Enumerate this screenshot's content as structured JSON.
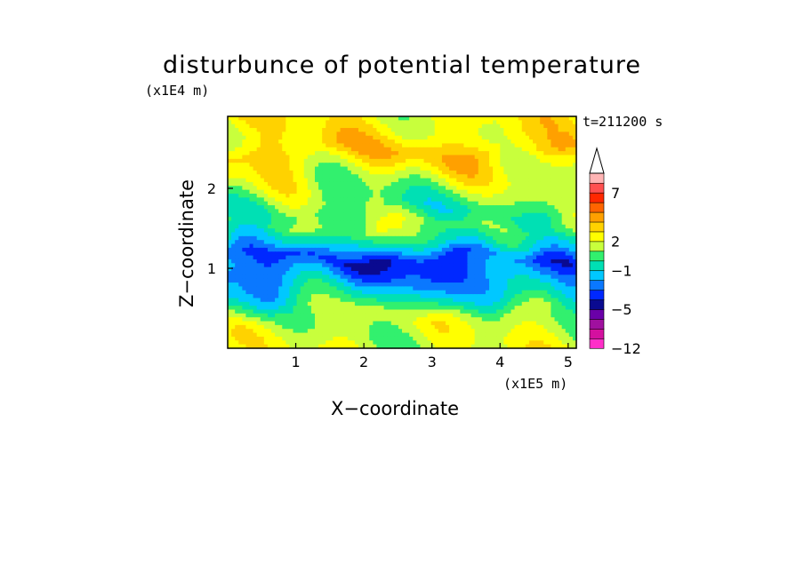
{
  "chart_data": {
    "type": "heatmap",
    "title": "disturbunce of potential temperature",
    "xlabel": "X−coordinate",
    "ylabel": "Z−coordinate",
    "x_scale_label": "(x1E5 m)",
    "y_scale_label": "(x1E4 m)",
    "time_label": "t=211200 s",
    "xlim": [
      0,
      5.12
    ],
    "ylim": [
      0,
      2.9
    ],
    "x_ticks": [
      "1",
      "2",
      "3",
      "4",
      "5"
    ],
    "y_ticks": [
      "1",
      "2"
    ],
    "colorbar": {
      "levels": [
        -12,
        -10,
        -8,
        -6,
        -5,
        -4,
        -3,
        -2,
        -1,
        0,
        1,
        2,
        3,
        4,
        5,
        6,
        7,
        8,
        9
      ],
      "tick_labels": [
        "−12",
        "−5",
        "−1",
        "2",
        "7"
      ],
      "colors": [
        "#ff2ec8",
        "#d4109f",
        "#a0109f",
        "#6a00a8",
        "#0a0a90",
        "#0028ff",
        "#0a78ff",
        "#00c8ff",
        "#00e0b4",
        "#32f06e",
        "#c8ff3c",
        "#ffff00",
        "#ffd200",
        "#ffa000",
        "#ff6400",
        "#ff2800",
        "#ff5050",
        "#ffb4b4"
      ],
      "extend": "max"
    },
    "bands": [
      {
        "z": 2.72,
        "value": 2.5
      },
      {
        "z": 2.45,
        "value": 3.5
      },
      {
        "z": 2.18,
        "value": 2
      },
      {
        "z": 1.95,
        "value": 1
      },
      {
        "z": 1.72,
        "value": 0.3
      },
      {
        "z": 1.52,
        "value": 1.2
      },
      {
        "z": 1.32,
        "value": -0.5
      },
      {
        "z": 1.12,
        "value": -3.5
      },
      {
        "z": 0.88,
        "value": -2.5
      },
      {
        "z": 0.65,
        "value": -0.8
      },
      {
        "z": 0.42,
        "value": 1.5
      },
      {
        "z": 0.18,
        "value": 1.8
      }
    ]
  }
}
